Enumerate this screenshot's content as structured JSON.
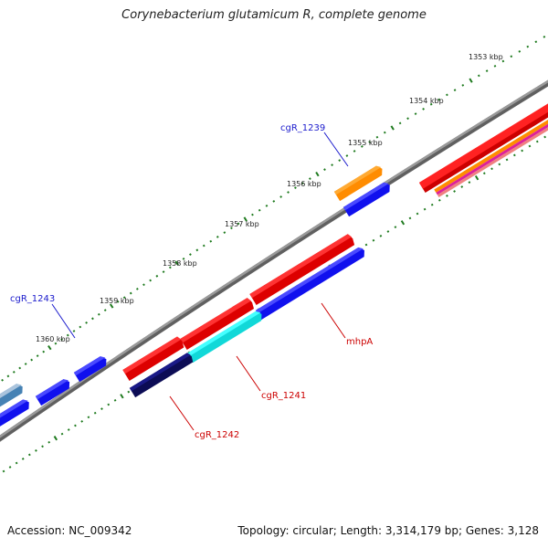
{
  "title": "Corynebacterium glutamicum R, complete genome",
  "footer": {
    "accession": "Accession: NC_009342",
    "stats": "Topology: circular; Length: 3,314,179 bp; Genes: 3,128"
  },
  "ruler_labels": [
    "1353 kbp",
    "1354 kbp",
    "1355 kbp",
    "1356 kbp",
    "1357 kbp",
    "1358 kbp",
    "1359 kbp",
    "1360 kbp"
  ],
  "gene_labels": {
    "cgR_1239": "cgR_1239",
    "cgR_1243": "cgR_1243",
    "mhpA": "mhpA",
    "cgR_1241": "cgR_1241",
    "cgR_1242": "cgR_1242"
  },
  "colors": {
    "backbone": "#808080",
    "tick_green": "#1e7a1e",
    "forward_cds": "#ee1111",
    "reverse_cds": "#1010ee",
    "orange_cds": "#ff8c00",
    "cyan_cds": "#22eeee",
    "navy_cds": "#101070",
    "steel_cds": "#4682b4",
    "magenta": "#dd2299",
    "label_blue": "#1a1acc",
    "label_red": "#cc0000"
  }
}
